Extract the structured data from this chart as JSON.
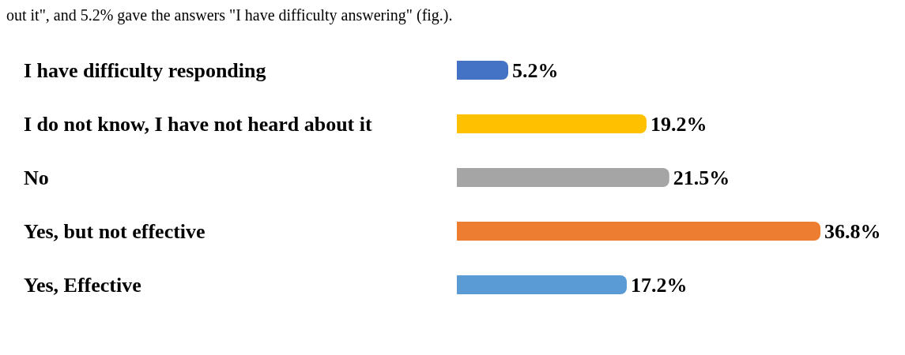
{
  "chart_data": {
    "type": "bar",
    "orientation": "horizontal",
    "annotations": [
      "out it\", and 5.2% gave the answers \"I have difficulty answering\" (fig.)."
    ],
    "categories": [
      "I have difficulty responding",
      "I do not know, I have not heard about it",
      "No",
      "Yes, but not effective",
      "Yes, Effective"
    ],
    "values": [
      5.2,
      19.2,
      21.5,
      36.8,
      17.2
    ],
    "colors": [
      "#4472c4",
      "#ffc000",
      "#a5a5a5",
      "#ed7d31",
      "#5b9bd5"
    ],
    "value_labels": [
      "5.2%",
      "19.2%",
      "21.5%",
      "36.8%",
      "17.2%"
    ],
    "tick_labels": "y"
  }
}
